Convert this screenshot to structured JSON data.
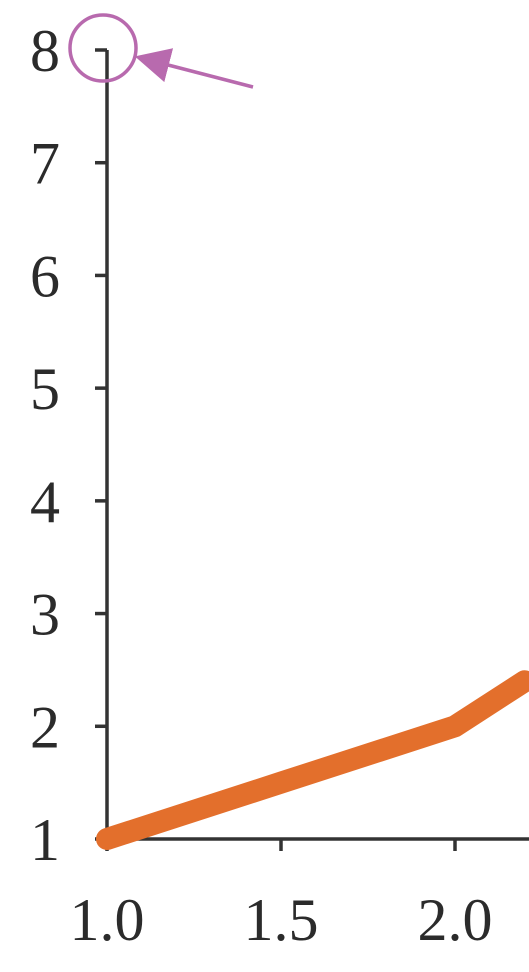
{
  "chart_data": {
    "type": "line",
    "title": "",
    "xlabel": "",
    "ylabel": "",
    "xlim": [
      1.0,
      2.2
    ],
    "ylim": [
      1,
      8
    ],
    "x_ticks": [
      1.0,
      1.5,
      2.0
    ],
    "x_tick_labels": [
      "1.0",
      "1.5",
      "2.0"
    ],
    "y_ticks": [
      1,
      2,
      3,
      4,
      5,
      6,
      7,
      8
    ],
    "y_tick_labels": [
      "1",
      "2",
      "3",
      "4",
      "5",
      "6",
      "7",
      "8"
    ],
    "grid": false,
    "legend": "none",
    "series": [
      {
        "color": "#e36f2c",
        "x": [
          1.0,
          1.5,
          2.0,
          2.2
        ],
        "y": [
          1.0,
          1.5,
          2.0,
          2.4
        ]
      }
    ],
    "annotations": [
      {
        "type": "circle-with-arrow",
        "target": {
          "x": 1.0,
          "y": 8
        },
        "color": "#b86aae"
      }
    ]
  }
}
